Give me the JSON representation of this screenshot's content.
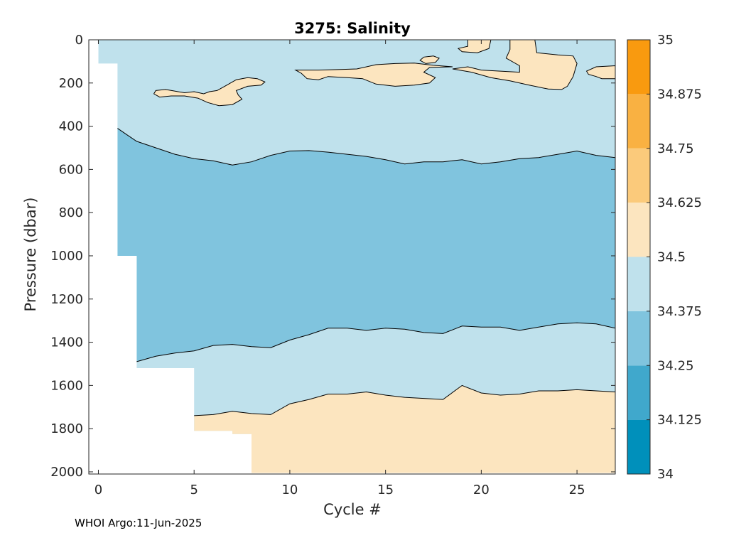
{
  "chart_data": {
    "type": "heatmap",
    "title": "3275:  Salinity",
    "xlabel": "Cycle #",
    "ylabel": "Pressure (dbar)",
    "xlim": [
      -0.5,
      27
    ],
    "ylim": [
      2010,
      0
    ],
    "x_ticks": [
      "0",
      "5",
      "10",
      "15",
      "20",
      "25"
    ],
    "x_tick_values": [
      0,
      5,
      10,
      15,
      20,
      25
    ],
    "y_ticks": [
      "0",
      "200",
      "400",
      "600",
      "800",
      "1000",
      "1200",
      "1400",
      "1600",
      "1800",
      "2000"
    ],
    "y_tick_values": [
      0,
      200,
      400,
      600,
      800,
      1000,
      1200,
      1400,
      1600,
      1800,
      2000
    ],
    "colorbar": {
      "ticks": [
        "34",
        "34.125",
        "34.25",
        "34.375",
        "34.5",
        "34.625",
        "34.75",
        "34.875",
        "35"
      ],
      "tick_values": [
        34,
        34.125,
        34.25,
        34.375,
        34.5,
        34.625,
        34.75,
        34.875,
        35
      ],
      "colors": [
        "#0090bb",
        "#40a8cc",
        "#80c4de",
        "#bfe1ec",
        "#fce5bf",
        "#fbca7b",
        "#f9b142",
        "#f99a0f"
      ]
    },
    "coverage": [
      {
        "cycle": 0,
        "max_pressure": 110
      },
      {
        "cycle": 1,
        "max_pressure": 1000
      },
      {
        "cycle": 2,
        "max_pressure": 1520
      },
      {
        "cycle": 5,
        "max_pressure": 1810
      },
      {
        "cycle": 7,
        "max_pressure": 1825
      },
      {
        "cycle": 8,
        "max_pressure": 2005
      }
    ],
    "boundaries": [
      {
        "name": "34.375 upper isohaline",
        "points": [
          [
            1,
            410
          ],
          [
            1.5,
            440
          ],
          [
            2,
            470
          ],
          [
            3,
            500
          ],
          [
            4,
            530
          ],
          [
            5,
            550
          ],
          [
            6,
            560
          ],
          [
            7,
            580
          ],
          [
            8,
            565
          ],
          [
            9,
            535
          ],
          [
            10,
            515
          ],
          [
            11,
            513
          ],
          [
            12,
            520
          ],
          [
            13,
            530
          ],
          [
            14,
            540
          ],
          [
            15,
            555
          ],
          [
            16,
            575
          ],
          [
            17,
            565
          ],
          [
            18,
            565
          ],
          [
            19,
            555
          ],
          [
            20,
            575
          ],
          [
            21,
            565
          ],
          [
            22,
            550
          ],
          [
            23,
            545
          ],
          [
            24,
            530
          ],
          [
            25,
            515
          ],
          [
            26,
            535
          ],
          [
            27,
            545
          ]
        ]
      },
      {
        "name": "34.375 lower isohaline",
        "points": [
          [
            2,
            1490
          ],
          [
            3,
            1465
          ],
          [
            4,
            1450
          ],
          [
            5,
            1440
          ],
          [
            6,
            1415
          ],
          [
            7,
            1410
          ],
          [
            8,
            1420
          ],
          [
            9,
            1425
          ],
          [
            10,
            1390
          ],
          [
            11,
            1365
          ],
          [
            12,
            1335
          ],
          [
            13,
            1335
          ],
          [
            14,
            1345
          ],
          [
            15,
            1335
          ],
          [
            16,
            1340
          ],
          [
            17,
            1355
          ],
          [
            18,
            1360
          ],
          [
            19,
            1325
          ],
          [
            20,
            1330
          ],
          [
            21,
            1330
          ],
          [
            22,
            1345
          ],
          [
            23,
            1330
          ],
          [
            24,
            1315
          ],
          [
            25,
            1310
          ],
          [
            26,
            1315
          ],
          [
            27,
            1335
          ]
        ]
      },
      {
        "name": "34.5 deep isohaline",
        "points": [
          [
            5,
            1740
          ],
          [
            6,
            1735
          ],
          [
            7,
            1720
          ],
          [
            8,
            1730
          ],
          [
            9,
            1735
          ],
          [
            10,
            1685
          ],
          [
            11,
            1665
          ],
          [
            12,
            1640
          ],
          [
            13,
            1640
          ],
          [
            14,
            1630
          ],
          [
            15,
            1645
          ],
          [
            16,
            1655
          ],
          [
            17,
            1660
          ],
          [
            18,
            1665
          ],
          [
            19,
            1600
          ],
          [
            20,
            1635
          ],
          [
            21,
            1645
          ],
          [
            22,
            1640
          ],
          [
            23,
            1625
          ],
          [
            24,
            1625
          ],
          [
            25,
            1620
          ],
          [
            26,
            1625
          ],
          [
            27,
            1630
          ]
        ]
      }
    ],
    "patches_above_34_5": [
      {
        "points": [
          [
            3.0,
            235
          ],
          [
            3.5,
            230
          ],
          [
            4.5,
            245
          ],
          [
            5.0,
            240
          ],
          [
            5.5,
            250
          ],
          [
            5.8,
            240
          ],
          [
            6.2,
            235
          ],
          [
            6.6,
            215
          ],
          [
            7.2,
            185
          ],
          [
            7.8,
            175
          ],
          [
            8.3,
            180
          ],
          [
            8.7,
            195
          ],
          [
            8.5,
            210
          ],
          [
            7.8,
            215
          ],
          [
            7.2,
            235
          ],
          [
            7.3,
            255
          ],
          [
            7.5,
            275
          ],
          [
            7.0,
            300
          ],
          [
            6.3,
            305
          ],
          [
            5.7,
            290
          ],
          [
            5.2,
            270
          ],
          [
            4.5,
            260
          ],
          [
            3.8,
            260
          ],
          [
            3.2,
            265
          ],
          [
            2.9,
            250
          ]
        ]
      },
      {
        "points": [
          [
            10.3,
            140
          ],
          [
            11.5,
            140
          ],
          [
            12.5,
            138
          ],
          [
            13.5,
            135
          ],
          [
            14.5,
            115
          ],
          [
            15.5,
            110
          ],
          [
            16.5,
            108
          ],
          [
            17.5,
            118
          ],
          [
            18.5,
            125
          ],
          [
            17.3,
            128
          ],
          [
            17.0,
            150
          ],
          [
            17.6,
            175
          ],
          [
            17.3,
            200
          ],
          [
            16.5,
            210
          ],
          [
            15.5,
            215
          ],
          [
            14.5,
            205
          ],
          [
            13.8,
            180
          ],
          [
            13.0,
            175
          ],
          [
            12.0,
            170
          ],
          [
            11.5,
            185
          ],
          [
            10.9,
            180
          ],
          [
            10.6,
            155
          ]
        ]
      },
      {
        "points": [
          [
            16.8,
            95
          ],
          [
            17.0,
            80
          ],
          [
            17.5,
            75
          ],
          [
            17.8,
            85
          ],
          [
            17.6,
            105
          ],
          [
            17.1,
            110
          ]
        ]
      },
      {
        "points": [
          [
            19.3,
            0
          ],
          [
            20.5,
            0
          ],
          [
            20.4,
            40
          ],
          [
            19.8,
            60
          ],
          [
            19.0,
            55
          ],
          [
            18.8,
            40
          ],
          [
            19.3,
            30
          ]
        ]
      },
      {
        "points": [
          [
            18.5,
            135
          ],
          [
            19.3,
            125
          ],
          [
            20.0,
            140
          ],
          [
            21.0,
            145
          ],
          [
            22.0,
            150
          ],
          [
            22.0,
            120
          ],
          [
            21.3,
            85
          ],
          [
            21.5,
            45
          ],
          [
            21.5,
            0
          ],
          [
            22.8,
            0
          ],
          [
            22.9,
            60
          ],
          [
            24.0,
            70
          ],
          [
            24.8,
            75
          ],
          [
            25.0,
            110
          ],
          [
            24.8,
            170
          ],
          [
            24.5,
            215
          ],
          [
            24.2,
            230
          ],
          [
            23.5,
            228
          ],
          [
            22.5,
            210
          ],
          [
            21.5,
            190
          ],
          [
            20.5,
            175
          ],
          [
            19.5,
            150
          ]
        ]
      },
      {
        "points": [
          [
            25.5,
            145
          ],
          [
            26.0,
            125
          ],
          [
            27.0,
            120
          ],
          [
            27.0,
            180
          ],
          [
            26.3,
            180
          ],
          [
            26.0,
            170
          ],
          [
            25.6,
            160
          ]
        ]
      }
    ],
    "footer": "WHOI Argo:11-Jun-2025"
  }
}
